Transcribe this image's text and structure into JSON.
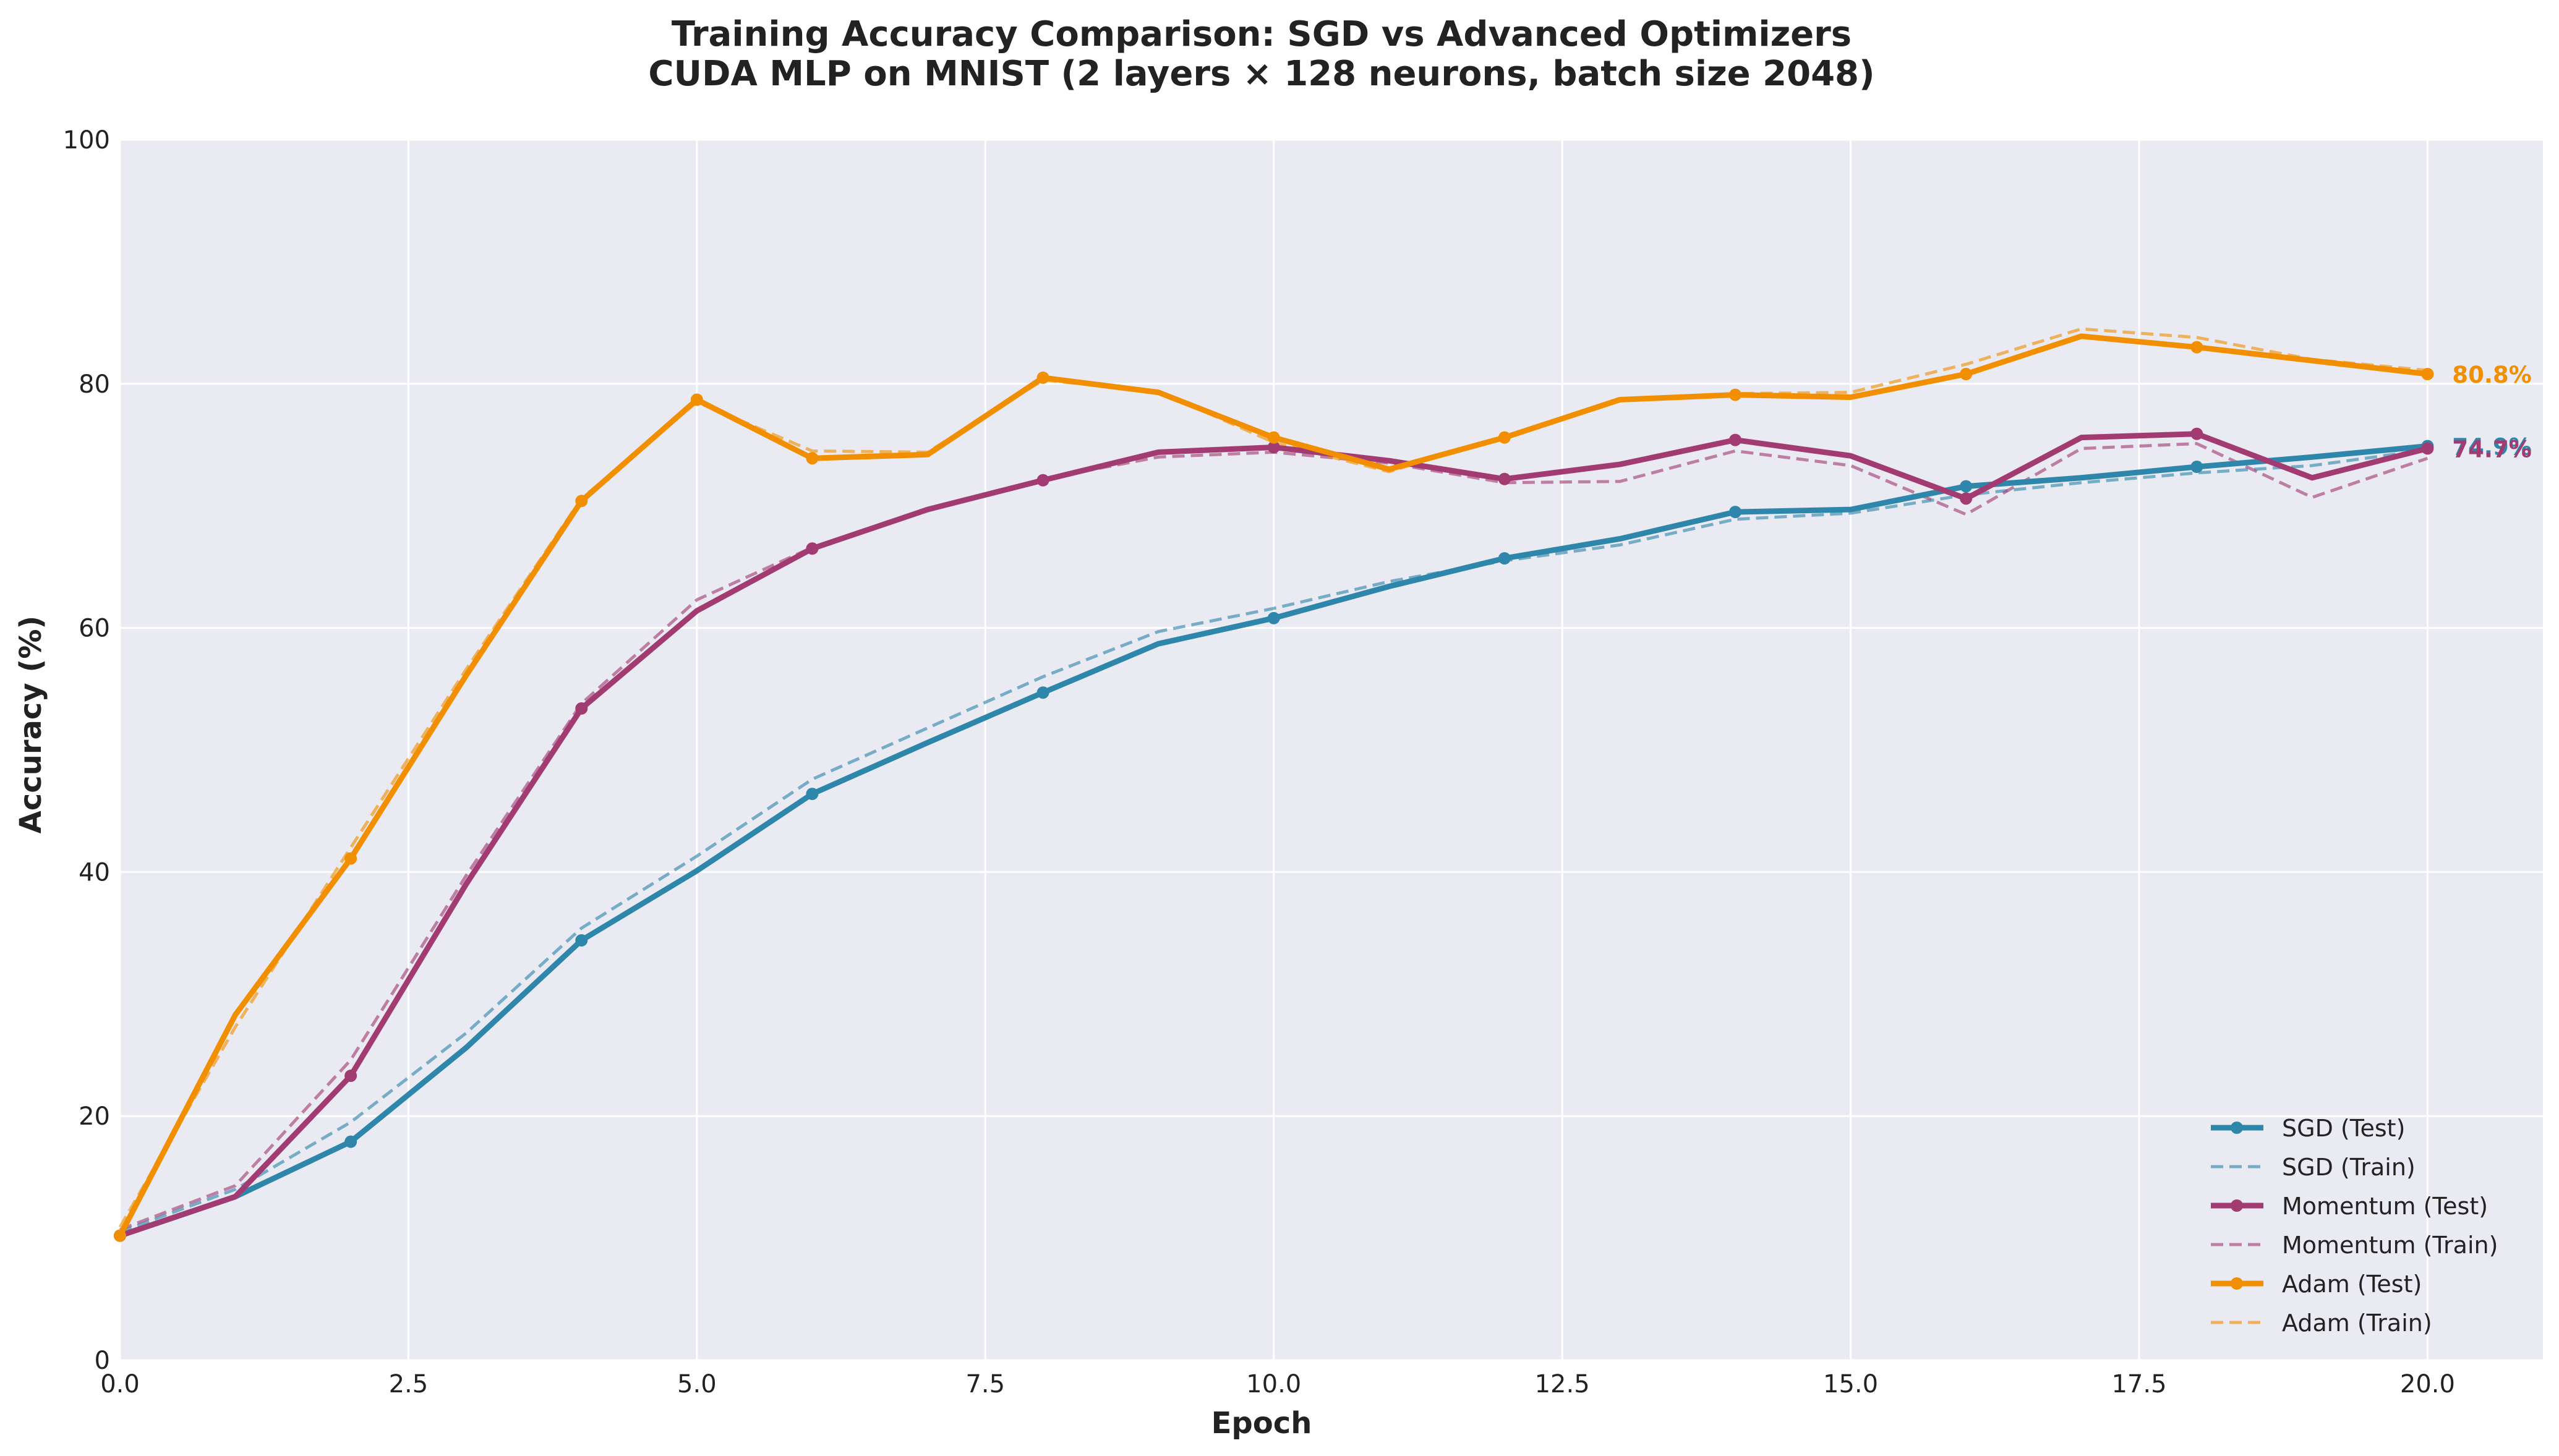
{
  "chart_data": {
    "type": "line",
    "title": "Training Accuracy Comparison: SGD vs Advanced Optimizers",
    "subtitle": "CUDA MLP on MNIST (2 layers × 128 neurons, batch size 2048)",
    "xlabel": "Epoch",
    "ylabel": "Accuracy (%)",
    "xlim": [
      0,
      21
    ],
    "ylim": [
      0,
      100
    ],
    "x_ticks": [
      {
        "value": 0,
        "label": "0.0"
      },
      {
        "value": 2.5,
        "label": "2.5"
      },
      {
        "value": 5,
        "label": "5.0"
      },
      {
        "value": 7.5,
        "label": "7.5"
      },
      {
        "value": 10,
        "label": "10.0"
      },
      {
        "value": 12.5,
        "label": "12.5"
      },
      {
        "value": 15,
        "label": "15.0"
      },
      {
        "value": 17.5,
        "label": "17.5"
      },
      {
        "value": 20,
        "label": "20.0"
      }
    ],
    "y_ticks": [
      {
        "value": 0,
        "label": "0"
      },
      {
        "value": 20,
        "label": "20"
      },
      {
        "value": 40,
        "label": "40"
      },
      {
        "value": 60,
        "label": "60"
      },
      {
        "value": 80,
        "label": "80"
      },
      {
        "value": 100,
        "label": "100"
      }
    ],
    "grid": true,
    "legend_position": "bottom-right",
    "background_color": "#eaeaf2",
    "x": [
      0,
      1,
      2,
      3,
      4,
      5,
      6,
      7,
      8,
      9,
      10,
      11,
      12,
      13,
      14,
      15,
      16,
      17,
      18,
      19,
      20
    ],
    "series": [
      {
        "name": "SGD (Test)",
        "color": "#2e86ab",
        "style": "solid",
        "markers": [
          0,
          2,
          4,
          6,
          8,
          10,
          12,
          14,
          16,
          18,
          20
        ],
        "values": [
          10.2,
          13.4,
          17.9,
          25.6,
          34.4,
          40.1,
          46.4,
          50.6,
          54.7,
          58.7,
          60.8,
          63.4,
          65.7,
          67.3,
          69.5,
          69.7,
          71.6,
          72.3,
          73.2,
          74.0,
          74.9
        ]
      },
      {
        "name": "SGD (Train)",
        "color": "#2e86ab",
        "style": "dashed",
        "markers": [],
        "values": [
          10.5,
          14.0,
          19.5,
          26.8,
          35.4,
          41.3,
          47.6,
          51.8,
          56.0,
          59.7,
          61.6,
          63.8,
          65.5,
          66.8,
          68.9,
          69.4,
          70.9,
          71.9,
          72.7,
          73.3,
          74.6
        ]
      },
      {
        "name": "Momentum (Test)",
        "color": "#a23b72",
        "style": "solid",
        "markers": [
          0,
          2,
          4,
          6,
          8,
          10,
          12,
          14,
          16,
          18,
          20
        ],
        "values": [
          10.2,
          13.4,
          23.3,
          39.0,
          53.4,
          61.4,
          66.5,
          69.7,
          72.1,
          74.4,
          74.8,
          73.7,
          72.2,
          73.4,
          75.4,
          74.1,
          70.6,
          75.6,
          75.9,
          72.3,
          74.7
        ]
      },
      {
        "name": "Momentum (Train)",
        "color": "#a23b72",
        "style": "dashed",
        "markers": [],
        "values": [
          10.7,
          14.3,
          24.6,
          39.7,
          53.8,
          62.3,
          66.6,
          69.8,
          72.2,
          74.0,
          74.4,
          73.5,
          71.9,
          72.0,
          74.5,
          73.3,
          69.3,
          74.7,
          75.1,
          70.7,
          73.9
        ]
      },
      {
        "name": "Adam (Test)",
        "color": "#f18f01",
        "style": "solid",
        "markers": [
          0,
          2,
          4,
          5,
          6,
          8,
          10,
          12,
          14,
          16,
          18,
          20
        ],
        "values": [
          10.2,
          28.3,
          41.1,
          56.1,
          70.4,
          78.7,
          73.9,
          74.2,
          80.5,
          79.3,
          75.6,
          73.0,
          75.6,
          78.7,
          79.1,
          78.9,
          80.8,
          83.9,
          83.0,
          81.9,
          80.8
        ]
      },
      {
        "name": "Adam (Train)",
        "color": "#f18f01",
        "style": "dashed",
        "markers": [],
        "values": [
          10.9,
          27.3,
          42.0,
          56.6,
          70.6,
          78.5,
          74.5,
          74.4,
          80.3,
          79.4,
          75.2,
          72.8,
          75.7,
          78.7,
          79.2,
          79.3,
          81.6,
          84.5,
          83.8,
          82.0,
          81.1
        ]
      }
    ],
    "end_labels": [
      {
        "series": "Adam (Test)",
        "label": "80.8%",
        "x": 20,
        "y": 80.8,
        "color": "#f18f01"
      },
      {
        "series": "SGD (Test)",
        "label": "74.9%",
        "x": 20,
        "y": 74.9,
        "color": "#2e86ab"
      },
      {
        "series": "Momentum (Test)",
        "label": "74.7%",
        "x": 20,
        "y": 74.7,
        "color": "#a23b72"
      }
    ]
  }
}
